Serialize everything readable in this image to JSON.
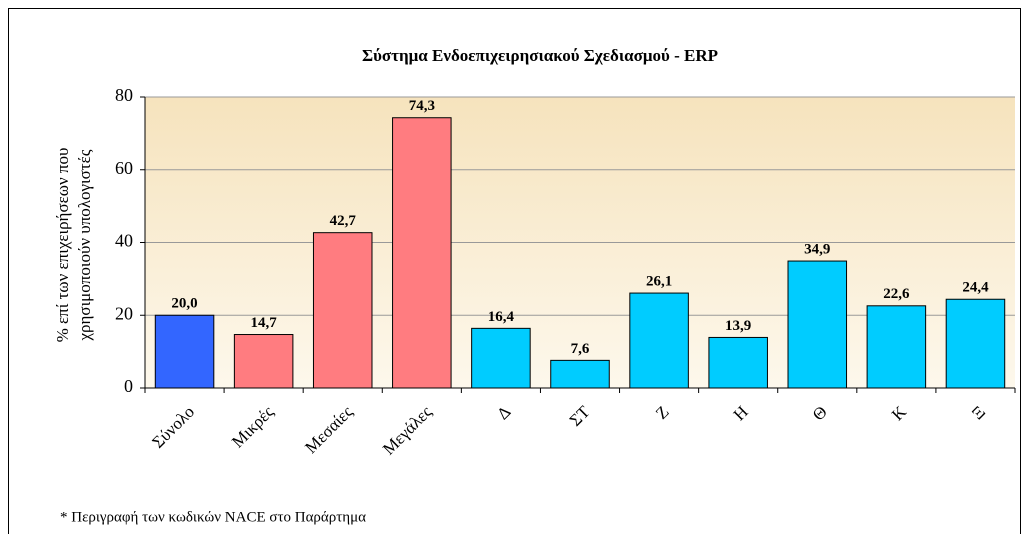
{
  "chart_data": {
    "type": "bar",
    "title": "Σύστημα Ενδοεπιχειρησιακού Σχεδιασμού - ERP",
    "ylabel": [
      "% επί των επιχειρήσεων που",
      "χρησιμοποιούν υπολογιστές"
    ],
    "categories": [
      "Σύνολο",
      "Μικρές",
      "Μεσαίες",
      "Μεγάλες",
      "Δ",
      "ΣΤ",
      "Ζ",
      "Η",
      "Θ",
      "Κ",
      "Ξ"
    ],
    "values": [
      20.0,
      14.7,
      42.7,
      74.3,
      16.4,
      7.6,
      26.1,
      13.9,
      34.9,
      22.6,
      24.4
    ],
    "value_labels": [
      "20,0",
      "14,7",
      "42,7",
      "74,3",
      "16,4",
      "7,6",
      "26,1",
      "13,9",
      "34,9",
      "22,6",
      "24,4"
    ],
    "colors": [
      "#3366ff",
      "#ff7c80",
      "#ff7c80",
      "#ff7c80",
      "#00ccff",
      "#00ccff",
      "#00ccff",
      "#00ccff",
      "#00ccff",
      "#00ccff",
      "#00ccff"
    ],
    "ylim": [
      0,
      80
    ],
    "yticks": [
      0,
      20,
      40,
      60,
      80
    ],
    "grid": true,
    "note": "* Περιγραφή των κωδικών NACE στο Παράρτημα"
  }
}
